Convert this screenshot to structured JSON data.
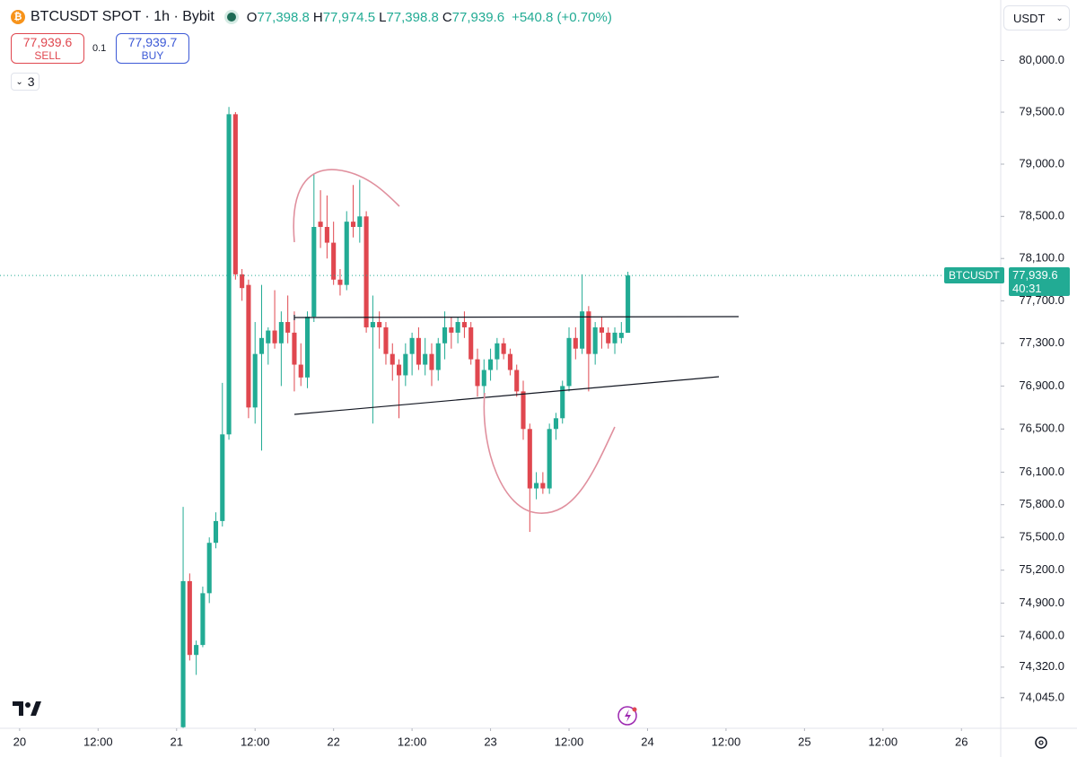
{
  "header": {
    "symbol": "BTCUSDT SPOT · 1h · Bybit",
    "ohlc": [
      {
        "key": "O",
        "value": "77,398.8"
      },
      {
        "key": "H",
        "value": "77,974.5"
      },
      {
        "key": "L",
        "value": "77,398.8"
      },
      {
        "key": "C",
        "value": "77,939.6"
      }
    ],
    "change": "+540.8 (+0.70%)"
  },
  "trade": {
    "sell_price": "77,939.6",
    "sell": "SELL",
    "qty": "0.1",
    "buy_price": "77,939.7",
    "buy": "BUY"
  },
  "indicators_count": "3",
  "currency": "USDT",
  "price_tag": {
    "symbol": "BTCUSDT",
    "price": "77,939.6",
    "countdown": "40:31"
  },
  "chart_data": {
    "type": "candlestick",
    "x": [
      25,
      26,
      27,
      28,
      29,
      30,
      31,
      32,
      33,
      34,
      35,
      36,
      37,
      38,
      39,
      40,
      41,
      42,
      43,
      44,
      45,
      46,
      47,
      48,
      49,
      50,
      51,
      52,
      53,
      54,
      55,
      56,
      57,
      58,
      59,
      60,
      61,
      62,
      63,
      64,
      65,
      66,
      67,
      68,
      69,
      70,
      71,
      72,
      73,
      74,
      75,
      76,
      77,
      78,
      79,
      80,
      81,
      82,
      83,
      84,
      85,
      86,
      87,
      88,
      89,
      90,
      91,
      92,
      93
    ],
    "open": [
      73780,
      75100,
      74430,
      74520,
      74990,
      75450,
      75650,
      76450,
      79480,
      77950,
      77850,
      76700,
      77200,
      77300,
      77420,
      77300,
      77500,
      77400,
      77100,
      76980,
      77550,
      78450,
      78400,
      78250,
      77900,
      77850,
      78450,
      78400,
      78500,
      77450,
      77500,
      77450,
      77200,
      77100,
      77000,
      77200,
      77350,
      77100,
      77200,
      77050,
      77300,
      77450,
      77400,
      77500,
      77450,
      77150,
      76900,
      77050,
      77150,
      77300,
      77200,
      77050,
      76850,
      76500,
      75950,
      76000,
      75950,
      76500,
      76600,
      76900,
      77350,
      77250,
      77600,
      77200,
      77450,
      77400,
      77300,
      77350,
      77398.8
    ],
    "high": [
      75780,
      75170,
      74560,
      75050,
      75500,
      75730,
      76930,
      79550,
      79500,
      78000,
      77900,
      77500,
      77850,
      77450,
      77800,
      77600,
      77750,
      77600,
      77300,
      77600,
      78900,
      78750,
      78700,
      78450,
      78000,
      78550,
      78800,
      78850,
      78550,
      77750,
      77600,
      77500,
      77300,
      77150,
      77300,
      77400,
      77450,
      77350,
      77300,
      77350,
      77600,
      77550,
      77550,
      77600,
      77500,
      77250,
      77150,
      77250,
      77350,
      77350,
      77250,
      77100,
      76950,
      76550,
      76100,
      76100,
      76550,
      76650,
      76950,
      77450,
      77450,
      77950,
      77650,
      77500,
      77550,
      77450,
      77450,
      77500,
      77974.5
    ],
    "low": [
      73700,
      74380,
      74250,
      74500,
      74900,
      75400,
      75600,
      76400,
      77900,
      77700,
      76600,
      76550,
      76300,
      77100,
      77250,
      76900,
      77300,
      76850,
      76900,
      76880,
      77500,
      78200,
      78100,
      77850,
      77750,
      77800,
      78300,
      78250,
      77400,
      76550,
      77250,
      77100,
      76950,
      76600,
      76900,
      77000,
      77050,
      77000,
      76900,
      76950,
      77150,
      77250,
      77300,
      77350,
      77100,
      76800,
      76800,
      76950,
      77050,
      77150,
      77000,
      76800,
      76400,
      75550,
      75850,
      75900,
      75900,
      76400,
      76550,
      76850,
      77150,
      77200,
      76850,
      77100,
      77250,
      77250,
      77200,
      77300,
      77398.8
    ],
    "close": [
      75100,
      74430,
      74520,
      74990,
      75450,
      75650,
      76450,
      79480,
      77950,
      77820,
      76700,
      77200,
      77350,
      77420,
      77300,
      77500,
      77400,
      77100,
      76980,
      77550,
      78400,
      78400,
      78250,
      77900,
      77850,
      78450,
      78400,
      78500,
      77450,
      77500,
      77450,
      77200,
      77100,
      77000,
      77200,
      77350,
      77100,
      77200,
      77050,
      77300,
      77450,
      77400,
      77500,
      77450,
      77150,
      76900,
      77050,
      77150,
      77300,
      77200,
      77050,
      76850,
      76500,
      75950,
      76000,
      75950,
      76500,
      76600,
      76900,
      77350,
      77250,
      77600,
      77200,
      77450,
      77400,
      77300,
      77400,
      77398.8,
      77939.6
    ],
    "xlim": [
      -3,
      150
    ],
    "xticks": [
      {
        "value": 0,
        "label": "20"
      },
      {
        "value": 12,
        "label": "12:00"
      },
      {
        "value": 24,
        "label": "21"
      },
      {
        "value": 36,
        "label": "12:00"
      },
      {
        "value": 48,
        "label": "22"
      },
      {
        "value": 60,
        "label": "12:00"
      },
      {
        "value": 72,
        "label": "23"
      },
      {
        "value": 84,
        "label": "12:00"
      },
      {
        "value": 96,
        "label": "24"
      },
      {
        "value": 108,
        "label": "12:00"
      },
      {
        "value": 120,
        "label": "25"
      },
      {
        "value": 132,
        "label": "12:00"
      },
      {
        "value": 144,
        "label": "26"
      }
    ],
    "ylim": [
      73770,
      80590
    ],
    "yticks": [
      {
        "value": 80000,
        "label": "80,000.0"
      },
      {
        "value": 79500,
        "label": "79,500.0"
      },
      {
        "value": 79000,
        "label": "79,000.0"
      },
      {
        "value": 78500,
        "label": "78,500.0"
      },
      {
        "value": 78100,
        "label": "78,100.0"
      },
      {
        "value": 77700,
        "label": "77,700.0"
      },
      {
        "value": 77300,
        "label": "77,300.0"
      },
      {
        "value": 76900,
        "label": "76,900.0"
      },
      {
        "value": 76500,
        "label": "76,500.0"
      },
      {
        "value": 76100,
        "label": "76,100.0"
      },
      {
        "value": 75800,
        "label": "75,800.0"
      },
      {
        "value": 75500,
        "label": "75,500.0"
      },
      {
        "value": 75200,
        "label": "75,200.0"
      },
      {
        "value": 74900,
        "label": "74,900.0"
      },
      {
        "value": 74600,
        "label": "74,600.0"
      },
      {
        "value": 74320,
        "label": "74,320.0"
      },
      {
        "value": 74045,
        "label": "74,045.0"
      }
    ],
    "log_scale": true,
    "up_color": "#22ab94",
    "down_color": "#e0474f",
    "last_price": 77939.6
  }
}
